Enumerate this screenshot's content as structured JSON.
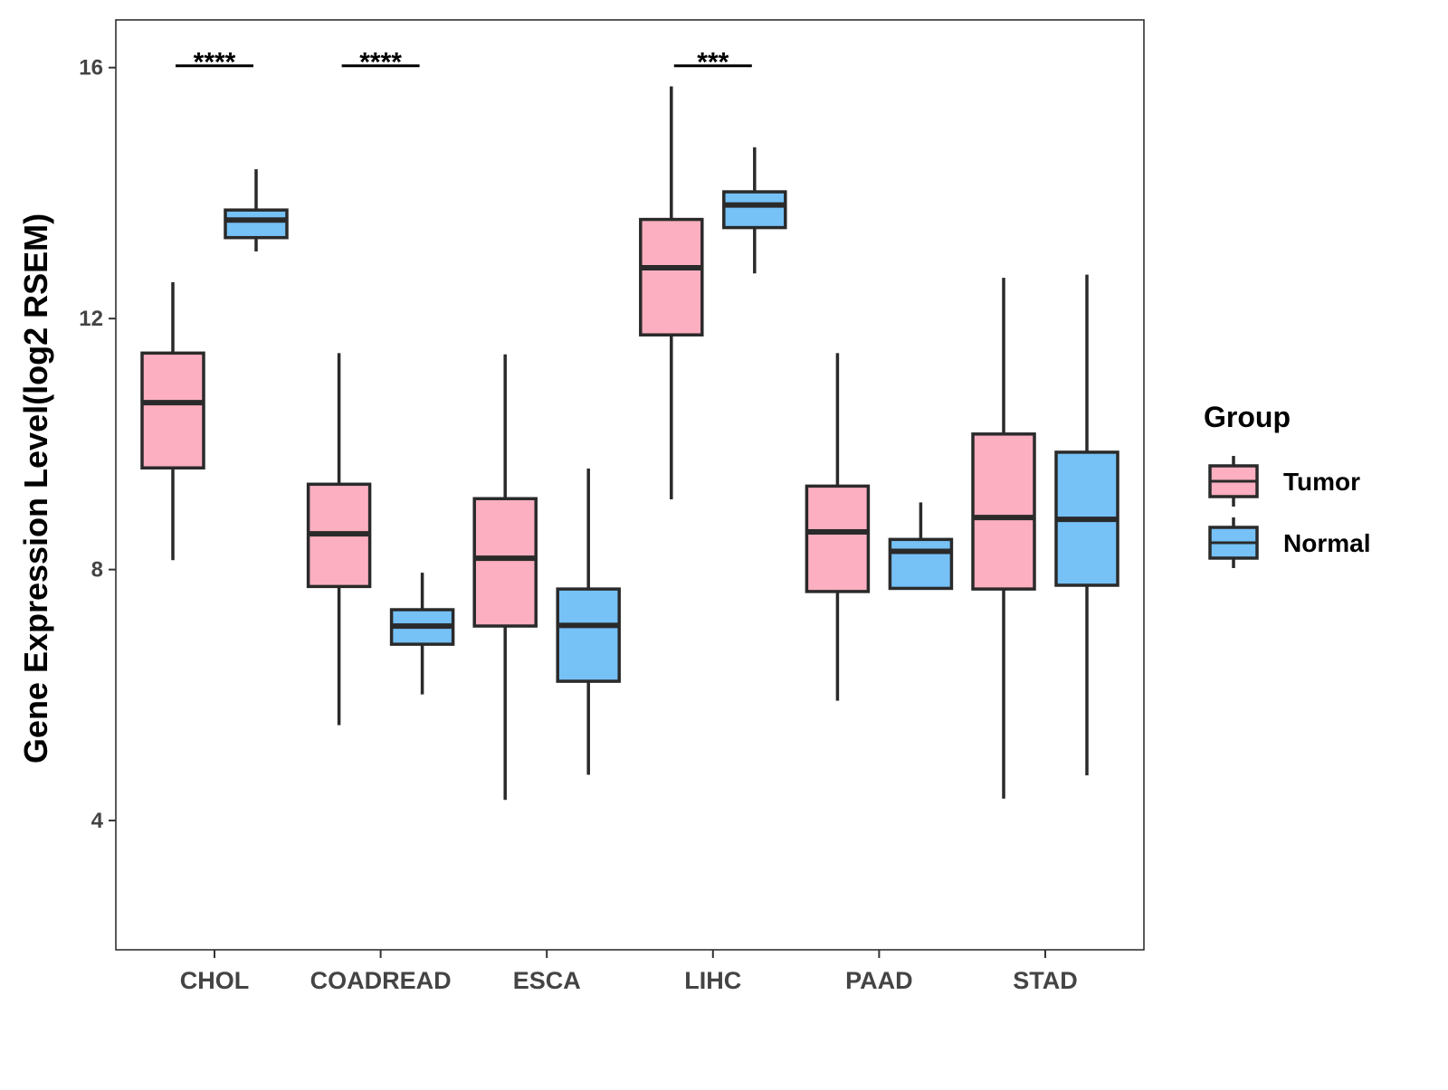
{
  "chart_data": {
    "type": "boxplot",
    "title": "",
    "xlabel": "",
    "ylabel": "Gene Expression Level(log2 RSEM)",
    "ylim": [
      1.94,
      16.76
    ],
    "yticks": [
      4,
      8,
      12,
      16
    ],
    "grid": false,
    "categories": [
      "CHOL",
      "COADREAD",
      "ESCA",
      "LIHC",
      "PAAD",
      "STAD"
    ],
    "legend": {
      "title": "Group",
      "position": "right"
    },
    "series": [
      {
        "name": "Tumor",
        "color": "#FCAFC0",
        "boxes": [
          {
            "min": 8.15,
            "q1": 9.62,
            "median": 10.66,
            "q3": 11.45,
            "max": 12.58
          },
          {
            "min": 5.52,
            "q1": 7.73,
            "median": 8.57,
            "q3": 9.36,
            "max": 11.45
          },
          {
            "min": 4.33,
            "q1": 7.1,
            "median": 8.18,
            "q3": 9.13,
            "max": 11.43
          },
          {
            "min": 9.12,
            "q1": 11.74,
            "median": 12.81,
            "q3": 13.58,
            "max": 15.7
          },
          {
            "min": 5.91,
            "q1": 7.65,
            "median": 8.6,
            "q3": 9.33,
            "max": 11.45
          },
          {
            "min": 4.35,
            "q1": 7.69,
            "median": 8.83,
            "q3": 10.16,
            "max": 12.65
          }
        ]
      },
      {
        "name": "Normal",
        "color": "#76C1F6",
        "boxes": [
          {
            "min": 13.07,
            "q1": 13.29,
            "median": 13.57,
            "q3": 13.73,
            "max": 14.38
          },
          {
            "min": 6.01,
            "q1": 6.81,
            "median": 7.1,
            "q3": 7.36,
            "max": 7.95
          },
          {
            "min": 4.73,
            "q1": 6.22,
            "median": 7.11,
            "q3": 7.69,
            "max": 9.61
          },
          {
            "min": 12.72,
            "q1": 13.45,
            "median": 13.81,
            "q3": 14.02,
            "max": 14.73
          },
          {
            "min": 7.7,
            "q1": 7.7,
            "median": 8.29,
            "q3": 8.48,
            "max": 9.07
          },
          {
            "min": 4.72,
            "q1": 7.75,
            "median": 8.8,
            "q3": 9.87,
            "max": 12.7
          }
        ]
      }
    ],
    "annotations": [
      {
        "category": "CHOL",
        "label": "****",
        "y": 16.0
      },
      {
        "category": "COADREAD",
        "label": "****",
        "y": 16.0
      },
      {
        "category": "LIHC",
        "label": "***",
        "y": 16.0
      }
    ]
  }
}
